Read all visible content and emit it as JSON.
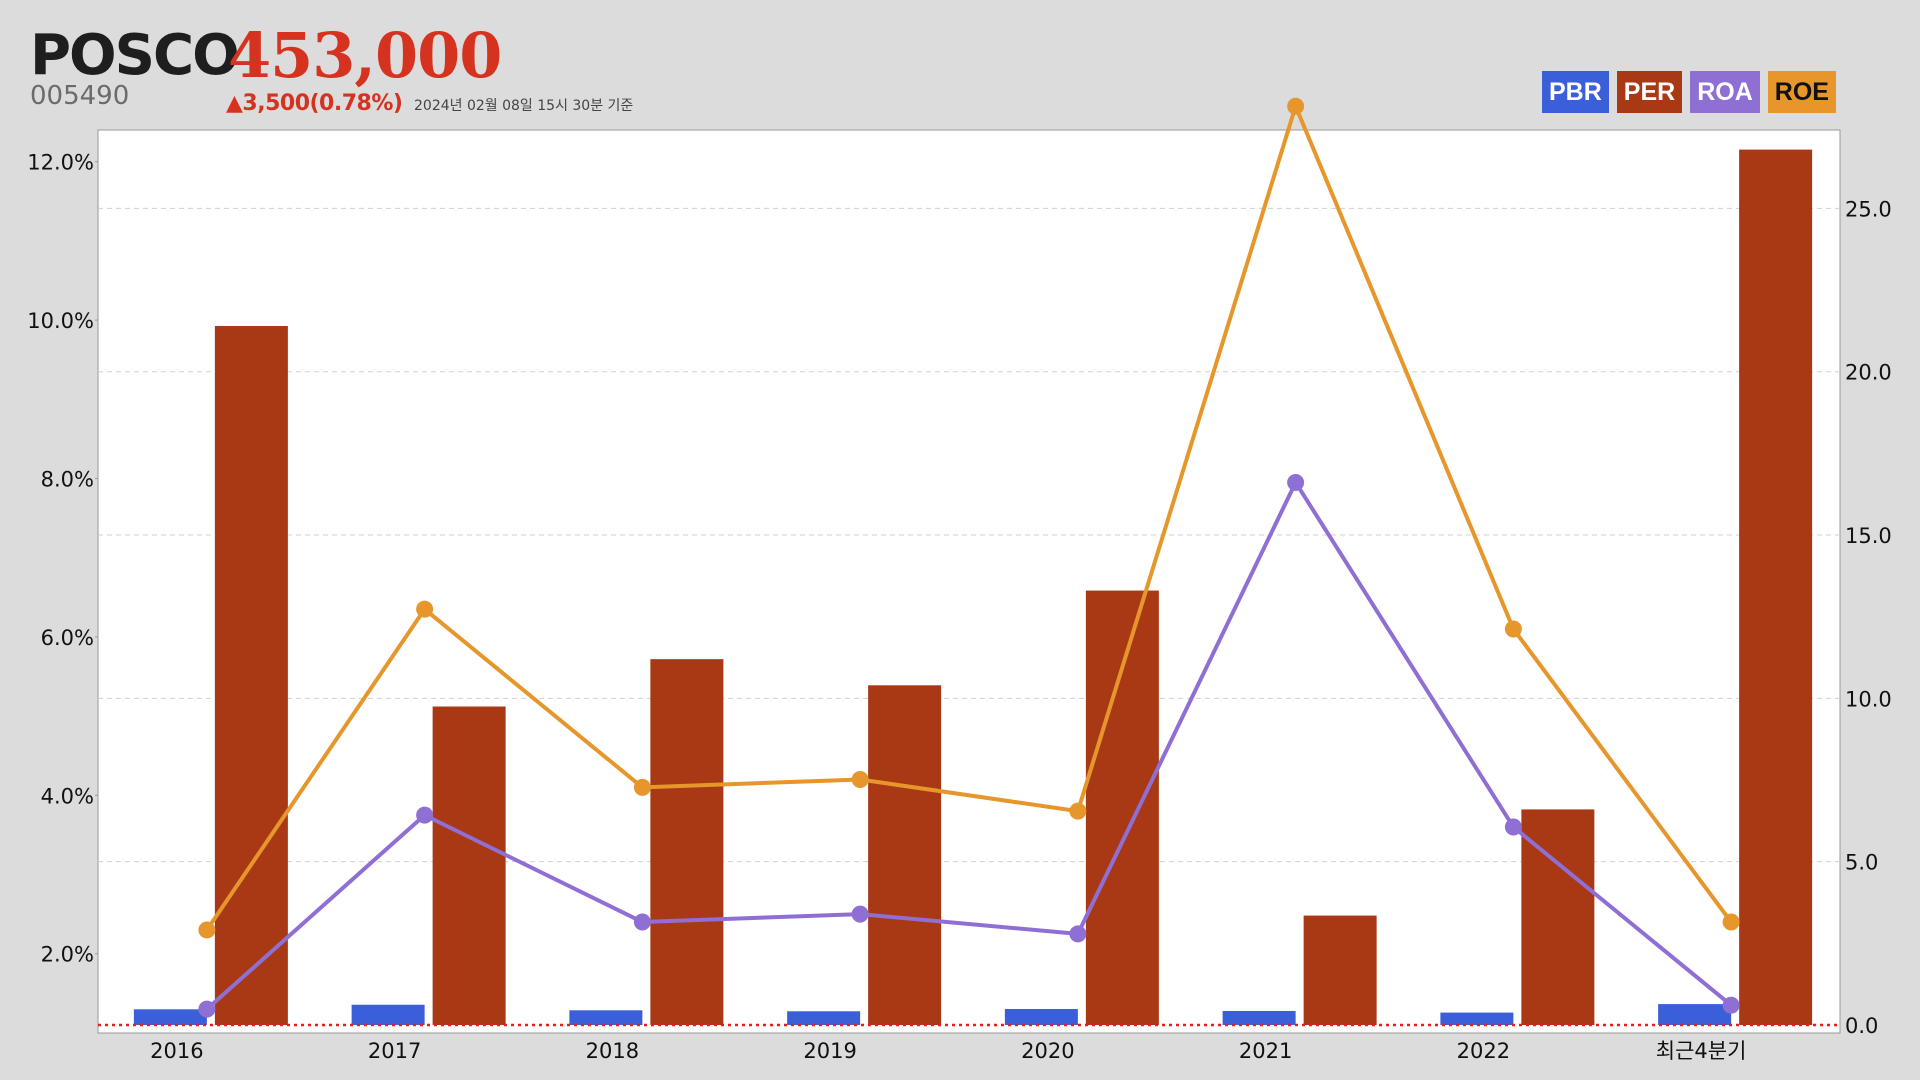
{
  "header": {
    "name": "POSCO",
    "price": "453,000",
    "code": "005490",
    "change": "▲3,500(0.78%)",
    "timestamp": "2024년 02월 08일 15시 30분 기준"
  },
  "legend": [
    {
      "label": "PBR",
      "color": "#3a5fd9"
    },
    {
      "label": "PER",
      "color": "#a83914"
    },
    {
      "label": "ROA",
      "color": "#8f6fd4"
    },
    {
      "label": "ROE",
      "color": "#e6962a"
    }
  ],
  "chart_data": {
    "type": "bar",
    "categories": [
      "2016",
      "2017",
      "2018",
      "2019",
      "2020",
      "2021",
      "2022",
      "최근4분기"
    ],
    "left_axis": {
      "ticks": [
        2.0,
        4.0,
        6.0,
        8.0,
        10.0,
        12.0
      ],
      "tick_labels": [
        "2.0%",
        "4.0%",
        "6.0%",
        "8.0%",
        "10.0%",
        "12.0%"
      ],
      "range": [
        1.1,
        12.4
      ]
    },
    "right_axis": {
      "ticks": [
        0,
        5,
        10,
        15,
        20,
        25
      ],
      "tick_labels": [
        "0.0",
        "5.0",
        "10.0",
        "15.0",
        "20.0",
        "25.0"
      ],
      "range": [
        0,
        27.4
      ]
    },
    "grid": true,
    "reference_line": {
      "axis": "right",
      "value": 0,
      "color": "#e02020",
      "style": "dotted"
    },
    "series": [
      {
        "name": "PBR",
        "type": "bar",
        "axis": "right",
        "color": "#3a5fd9",
        "values": [
          0.48,
          0.62,
          0.45,
          0.42,
          0.49,
          0.43,
          0.38,
          0.64
        ]
      },
      {
        "name": "PER",
        "type": "bar",
        "axis": "right",
        "color": "#a83914",
        "values": [
          21.4,
          9.75,
          11.2,
          10.4,
          13.3,
          3.35,
          6.6,
          26.8
        ]
      },
      {
        "name": "ROA",
        "type": "line",
        "axis": "left",
        "color": "#8f6fd4",
        "values": [
          1.3,
          3.75,
          2.4,
          2.5,
          2.25,
          7.95,
          3.6,
          1.35
        ]
      },
      {
        "name": "ROE",
        "type": "line",
        "axis": "left",
        "color": "#e6962a",
        "values": [
          2.3,
          6.35,
          4.1,
          4.2,
          3.8,
          12.7,
          6.1,
          2.4
        ]
      }
    ]
  }
}
